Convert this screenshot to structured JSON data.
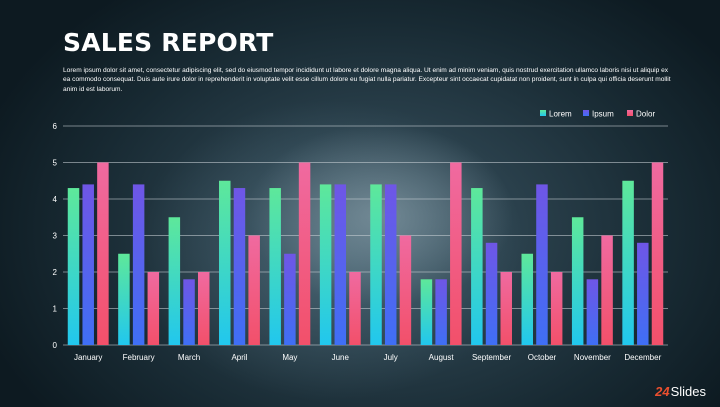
{
  "slide": {
    "title": "SALES REPORT",
    "subtitle": "Lorem ipsum dolor sit amet, consectetur adipiscing elit, sed do eiusmod tempor incididunt ut labore et dolore magna aliqua. Ut enim ad minim veniam, quis nostrud exercitation ullamco laboris nisi ut aliquip ex ea commodo consequat. Duis aute irure dolor in reprehenderit in voluptate velit esse cillum dolore eu fugiat nulla pariatur. Excepteur sint occaecat cupidatat non proident, sunt in culpa qui officia deserunt mollit anim id est laborum.",
    "logo_mark": "24",
    "logo_text": "Slides"
  },
  "chart_data": {
    "type": "bar",
    "title": "",
    "xlabel": "",
    "ylabel": "",
    "ylim": [
      0,
      6
    ],
    "yticks": [
      0,
      1,
      2,
      3,
      4,
      5,
      6
    ],
    "grid": true,
    "legend_position": "top-right",
    "categories": [
      "January",
      "February",
      "March",
      "April",
      "May",
      "June",
      "July",
      "August",
      "September",
      "October",
      "November",
      "December"
    ],
    "series": [
      {
        "name": "Lorem",
        "values": [
          4.3,
          2.5,
          3.5,
          4.5,
          4.3,
          4.4,
          4.4,
          1.8,
          4.3,
          2.5,
          3.5,
          4.5
        ],
        "color_top": "#5ee89a",
        "color_bottom": "#21c7ee"
      },
      {
        "name": "Ipsum",
        "values": [
          4.4,
          4.4,
          1.8,
          4.3,
          2.5,
          4.4,
          4.4,
          1.8,
          2.8,
          4.4,
          1.8,
          2.8
        ],
        "color_top": "#6f56e6",
        "color_bottom": "#3f6ff5"
      },
      {
        "name": "Dolor",
        "values": [
          5.0,
          2.0,
          2.0,
          3.0,
          5.0,
          2.0,
          3.0,
          5.0,
          2.0,
          2.0,
          3.0,
          5.0
        ],
        "color_top": "#f06aa0",
        "color_bottom": "#f2506a"
      }
    ]
  }
}
